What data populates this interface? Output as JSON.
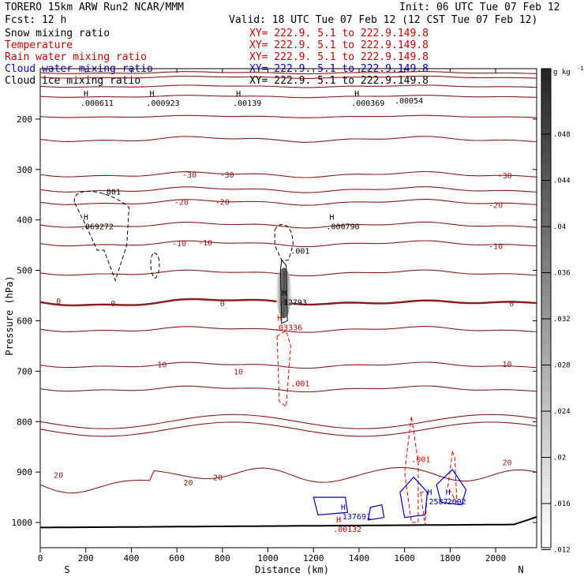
{
  "header": {
    "model": "TORERO  15km ARW   Run2    NCAR/MMM",
    "init": "Init: 06 UTC Tue 07 Feb 12",
    "fcst": "Fcst:   12 h",
    "valid": "Valid: 18 UTC Tue 07 Feb 12 (12 CST Tue 07 Feb 12)",
    "fields": [
      {
        "name": "Snow mixing ratio",
        "xy": "XY= 222.9.  5.1 to 222.9.149.8",
        "color": "#000000",
        "xy_color": "#cc0000"
      },
      {
        "name": "Temperature",
        "xy": "XY= 222.9.  5.1 to 222.9.149.8",
        "color": "#cc0000",
        "xy_color": "#cc0000"
      },
      {
        "name": "Rain water mixing ratio",
        "xy": "XY= 222.9.  5.1 to 222.9.149.8",
        "color": "#cc0000",
        "xy_color": "#cc0000"
      },
      {
        "name": "Cloud water mixing ratio",
        "xy": "XY= 222.9.  5.1 to 222.9.149.8",
        "color": "#0000cc",
        "xy_color": "#0000cc"
      },
      {
        "name": "Cloud ice mixing ratio",
        "xy": "XY= 222.9.  5.1 to 222.9.149.8",
        "color": "#000000",
        "xy_color": "#000000"
      }
    ]
  },
  "chart_data": {
    "type": "contour",
    "xlabel": "Distance (km)",
    "ylabel": "Pressure (hPa)",
    "xlim": [
      0,
      2180
    ],
    "ylim": [
      1050,
      100
    ],
    "x_ticks": [
      0,
      200,
      400,
      600,
      800,
      1000,
      1200,
      1400,
      1600,
      1800,
      2000
    ],
    "y_ticks": [
      200,
      300,
      400,
      500,
      600,
      700,
      800,
      900,
      1000
    ],
    "x_ends": {
      "left": "S",
      "right": "N"
    },
    "colorbar": {
      "unit": "g kg",
      "unit_exp": "-1",
      "ticks": [
        ".048",
        ".044",
        ".04",
        ".036",
        ".032",
        ".028",
        ".024",
        ".02",
        ".016",
        ".012"
      ]
    },
    "temperature_contours": [
      {
        "level": -30,
        "labels": [
          [
            655,
            310
          ],
          [
            820,
            310
          ],
          [
            2040,
            311
          ]
        ]
      },
      {
        "level": -20,
        "labels": [
          [
            620,
            364
          ],
          [
            800,
            364
          ],
          [
            2000,
            370
          ]
        ]
      },
      {
        "level": -10,
        "labels": [
          [
            610,
            446
          ],
          [
            725,
            444
          ],
          [
            2000,
            451
          ]
        ]
      },
      {
        "level": 0,
        "labels": [
          [
            80,
            560
          ],
          [
            320,
            565
          ],
          [
            800,
            565
          ],
          [
            2070,
            565
          ]
        ]
      },
      {
        "level": 10,
        "labels": [
          [
            535,
            686
          ],
          [
            870,
            700
          ],
          [
            2050,
            685
          ]
        ]
      },
      {
        "level": 20,
        "labels": [
          [
            80,
            905
          ],
          [
            650,
            920
          ],
          [
            780,
            910
          ],
          [
            2050,
            880
          ]
        ]
      }
    ],
    "markers": [
      {
        "field": "cloud_ice",
        "label": "H",
        "value": ".069272",
        "x": 190,
        "p": 400
      },
      {
        "field": "cloud_ice",
        "label": "H",
        "value": ".000790",
        "x": 1270,
        "p": 400
      },
      {
        "field": "cloud_ice",
        "label": "H",
        "value": ".000611",
        "x": 190,
        "p": 155
      },
      {
        "field": "cloud_ice",
        "label": "H",
        "value": ".000923",
        "x": 480,
        "p": 155
      },
      {
        "field": "cloud_ice",
        "label": "H",
        "value": ".00139",
        "x": 860,
        "p": 155
      },
      {
        "field": "cloud_ice",
        "label": "H",
        "value": ".000369",
        "x": 1380,
        "p": 155
      },
      {
        "field": "cloud_ice",
        "label": "",
        "value": ".00054",
        "x": 1570,
        "p": 150
      },
      {
        "field": "snow",
        "label": "H",
        "value": ".12793",
        "x": 1060,
        "p": 550
      },
      {
        "field": "rain",
        "label": "H",
        "value": ".03336",
        "x": 1040,
        "p": 600
      },
      {
        "field": "rain",
        "label": "H",
        "value": ".00132",
        "x": 1300,
        "p": 1000
      },
      {
        "field": "cloud_water",
        "label": "H",
        "value": ".137691",
        "x": 1320,
        "p": 975
      },
      {
        "field": "cloud_water",
        "label": "H",
        "value": ".2587",
        "x": 1700,
        "p": 945
      },
      {
        "field": "cloud_water",
        "label": "H",
        "value": ".2602",
        "x": 1780,
        "p": 945
      }
    ],
    "contour_labels": [
      {
        "field": "cloud_ice",
        "value": ".001",
        "x": 270,
        "p": 350
      },
      {
        "field": "cloud_ice",
        "value": ".001",
        "x": 1100,
        "p": 467
      },
      {
        "field": "rain",
        "value": ".001",
        "x": 1100,
        "p": 730
      },
      {
        "field": "rain",
        "value": ".001",
        "x": 1630,
        "p": 880
      }
    ]
  }
}
